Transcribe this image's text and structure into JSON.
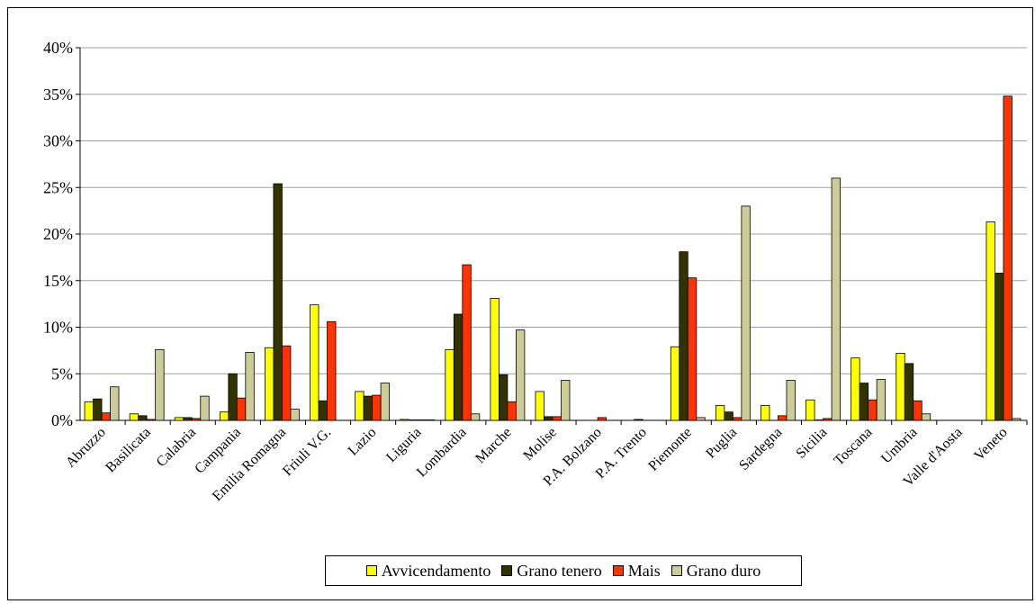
{
  "chart_data": {
    "type": "bar",
    "categories": [
      "Abruzzo",
      "Basilicata",
      "Calabria",
      "Campania",
      "Emilia Romagna",
      "Friuli V.G.",
      "Lazio",
      "Liguria",
      "Lombardia",
      "Marche",
      "Molise",
      "P.A. Bolzano",
      "P.A. Trento",
      "Piemonte",
      "Puglia",
      "Sardegna",
      "Sicilia",
      "Toscana",
      "Umbria",
      "Valle d'Aosta",
      "Veneto"
    ],
    "series": [
      {
        "name": "Avvicendamento",
        "color": "#ffff00",
        "values": [
          2.0,
          0.7,
          0.3,
          0.9,
          7.8,
          12.4,
          3.1,
          0.1,
          7.6,
          13.1,
          3.1,
          0.0,
          0.0,
          7.9,
          1.6,
          1.6,
          2.2,
          6.7,
          7.2,
          0.0,
          21.3
        ]
      },
      {
        "name": "Grano tenero",
        "color": "#333300",
        "values": [
          2.3,
          0.5,
          0.3,
          5.0,
          25.4,
          2.1,
          2.6,
          0.05,
          11.4,
          4.9,
          0.4,
          0.0,
          0.1,
          18.1,
          0.9,
          0.0,
          0.05,
          4.0,
          6.1,
          0.0,
          15.8
        ]
      },
      {
        "name": "Mais",
        "color": "#ff3300",
        "values": [
          0.8,
          0.1,
          0.2,
          2.4,
          8.0,
          10.6,
          2.7,
          0.05,
          16.7,
          2.0,
          0.4,
          0.3,
          0.0,
          15.3,
          0.3,
          0.5,
          0.2,
          2.2,
          2.1,
          0.0,
          34.8
        ]
      },
      {
        "name": "Grano duro",
        "color": "#cccc99",
        "values": [
          3.6,
          7.6,
          2.6,
          7.3,
          1.2,
          0.0,
          4.0,
          0.05,
          0.7,
          9.7,
          4.3,
          0.0,
          0.0,
          0.3,
          23.0,
          4.3,
          26.0,
          4.4,
          0.7,
          0.0,
          0.2
        ]
      }
    ],
    "yticks": [
      "0%",
      "5%",
      "10%",
      "15%",
      "20%",
      "25%",
      "30%",
      "35%",
      "40%"
    ],
    "ylim": [
      0,
      40
    ],
    "grid": true,
    "legend_position": "bottom",
    "xlabel": "",
    "ylabel": ""
  },
  "legend": {
    "items": [
      "Avvicendamento",
      "Grano tenero",
      "Mais",
      "Grano duro"
    ]
  }
}
